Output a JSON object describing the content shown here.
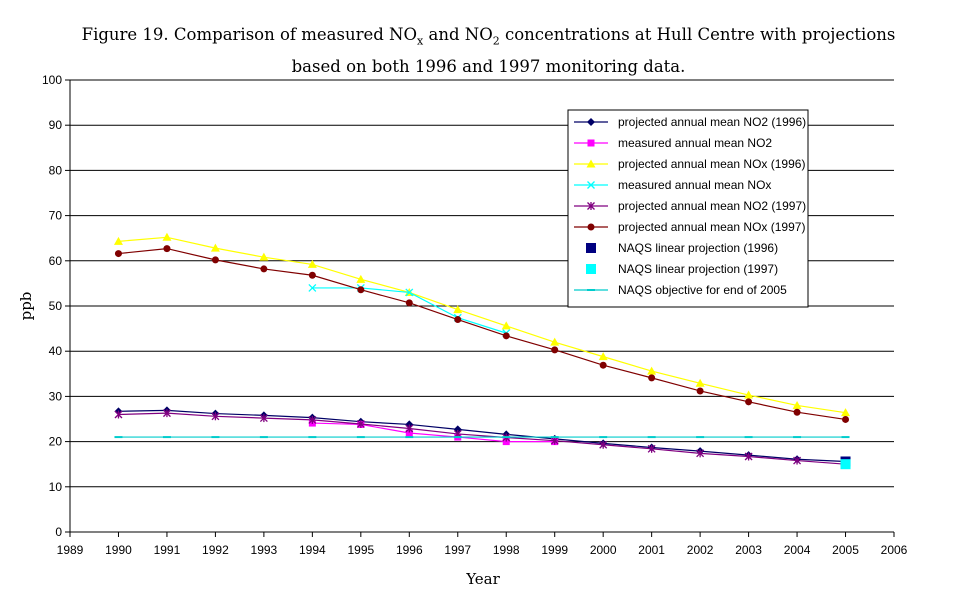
{
  "chart_data": {
    "type": "line",
    "title_parts": [
      "Figure 19. Comparison of measured NO",
      "x",
      " and NO",
      "2",
      " concentrations at Hull Centre with projections"
    ],
    "subtitle": "based on both 1996 and 1997 monitoring data.",
    "xlabel": "Year",
    "ylabel": "ppb",
    "xlim": [
      1989,
      2006
    ],
    "ylim": [
      0,
      100
    ],
    "x_ticks": [
      1989,
      1990,
      1991,
      1992,
      1993,
      1994,
      1995,
      1996,
      1997,
      1998,
      1999,
      2000,
      2001,
      2002,
      2003,
      2004,
      2005,
      2006
    ],
    "y_ticks": [
      0,
      10,
      20,
      30,
      40,
      50,
      60,
      70,
      80,
      90,
      100
    ],
    "grid": "horizontal",
    "legend_position": "top-right",
    "series": [
      {
        "name": "projected annual mean NO2 (1996)",
        "color": "#000066",
        "marker": "diamond",
        "x": [
          1990,
          1991,
          1992,
          1993,
          1994,
          1995,
          1996,
          1997,
          1998,
          1999,
          2000,
          2001,
          2002,
          2003,
          2004,
          2005
        ],
        "y": [
          26.7,
          26.9,
          26.2,
          25.8,
          25.3,
          24.4,
          23.8,
          22.7,
          21.6,
          20.6,
          19.6,
          18.7,
          17.9,
          17.0,
          16.1,
          15.6
        ]
      },
      {
        "name": "measured annual mean NO2",
        "color": "#ff00ff",
        "marker": "square",
        "x": [
          1994,
          1995,
          1996,
          1997,
          1998,
          1999
        ],
        "y": [
          24.1,
          23.8,
          21.9,
          21.0,
          20.0,
          20.0
        ]
      },
      {
        "name": "projected annual mean NOx (1996)",
        "color": "#ffff00",
        "marker": "triangle",
        "x": [
          1990,
          1991,
          1992,
          1993,
          1994,
          1995,
          1996,
          1997,
          1998,
          1999,
          2000,
          2001,
          2002,
          2003,
          2004,
          2005
        ],
        "y": [
          64.3,
          65.2,
          62.8,
          60.8,
          59.2,
          55.9,
          53.0,
          49.2,
          45.6,
          42.0,
          38.8,
          35.6,
          32.9,
          30.3,
          28.0,
          26.4
        ]
      },
      {
        "name": "measured annual mean NOx",
        "color": "#00ffff",
        "marker": "x",
        "x": [
          1994,
          1995,
          1996,
          1997,
          1998
        ],
        "y": [
          54.0,
          54.0,
          53.0,
          47.4,
          44.0
        ]
      },
      {
        "name": "projected annual mean NO2 (1997)",
        "color": "#800080",
        "marker": "star",
        "x": [
          1990,
          1991,
          1992,
          1993,
          1994,
          1995,
          1996,
          1997,
          1998,
          1999,
          2000,
          2001,
          2002,
          2003,
          2004,
          2005
        ],
        "y": [
          26.0,
          26.3,
          25.6,
          25.2,
          24.8,
          23.9,
          22.9,
          21.7,
          20.9,
          20.2,
          19.3,
          18.4,
          17.4,
          16.7,
          15.8,
          15.0
        ]
      },
      {
        "name": "projected annual mean NOx (1997)",
        "color": "#800000",
        "marker": "circle",
        "x": [
          1990,
          1991,
          1992,
          1993,
          1994,
          1995,
          1996,
          1997,
          1998,
          1999,
          2000,
          2001,
          2002,
          2003,
          2004,
          2005
        ],
        "y": [
          61.6,
          62.7,
          60.2,
          58.2,
          56.8,
          53.6,
          50.7,
          47.0,
          43.4,
          40.3,
          36.9,
          34.1,
          31.2,
          28.8,
          26.5,
          24.9
        ]
      },
      {
        "name": "NAQS linear projection (1996)",
        "color": "#000080",
        "marker": "bigsquare",
        "x": [
          2005
        ],
        "y": [
          15.6
        ]
      },
      {
        "name": "NAQS linear projection (1997)",
        "color": "#00ffff",
        "marker": "bigsquare",
        "x": [
          2005
        ],
        "y": [
          15.0
        ]
      },
      {
        "name": "NAQS objective for end of 2005",
        "color": "#00cccc",
        "marker": "dash",
        "x": [
          1990,
          1991,
          1992,
          1993,
          1994,
          1995,
          1996,
          1997,
          1998,
          1999,
          2000,
          2001,
          2002,
          2003,
          2004,
          2005
        ],
        "y": [
          21,
          21,
          21,
          21,
          21,
          21,
          21,
          21,
          21,
          21,
          21,
          21,
          21,
          21,
          21,
          21
        ]
      }
    ]
  }
}
